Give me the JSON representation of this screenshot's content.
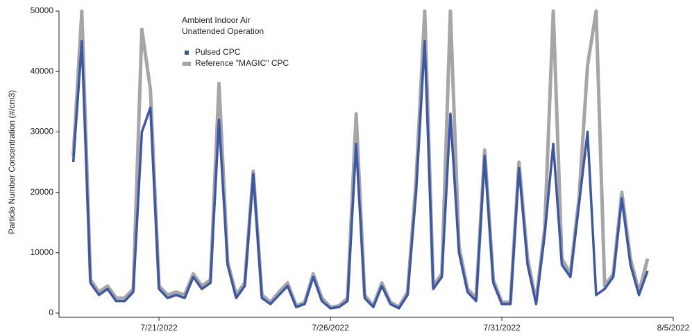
{
  "chart_data": {
    "type": "line",
    "annotation": [
      "Ambient Indoor Air",
      "Unattended Operation"
    ],
    "y_label": "Particle Number Concentration (#/cm3)",
    "x": [
      "2022-07-18T12:00",
      "2022-07-18T18:00",
      "2022-07-19T00:00",
      "2022-07-19T06:00",
      "2022-07-19T12:00",
      "2022-07-19T18:00",
      "2022-07-20T00:00",
      "2022-07-20T06:00",
      "2022-07-20T12:00",
      "2022-07-20T18:00",
      "2022-07-21T00:00",
      "2022-07-21T06:00",
      "2022-07-21T12:00",
      "2022-07-21T18:00",
      "2022-07-22T00:00",
      "2022-07-22T06:00",
      "2022-07-22T12:00",
      "2022-07-22T18:00",
      "2022-07-23T00:00",
      "2022-07-23T06:00",
      "2022-07-23T12:00",
      "2022-07-23T18:00",
      "2022-07-24T00:00",
      "2022-07-24T06:00",
      "2022-07-24T12:00",
      "2022-07-24T18:00",
      "2022-07-25T00:00",
      "2022-07-25T06:00",
      "2022-07-25T12:00",
      "2022-07-25T18:00",
      "2022-07-26T00:00",
      "2022-07-26T06:00",
      "2022-07-26T12:00",
      "2022-07-26T18:00",
      "2022-07-27T00:00",
      "2022-07-27T06:00",
      "2022-07-27T12:00",
      "2022-07-27T18:00",
      "2022-07-28T00:00",
      "2022-07-28T06:00",
      "2022-07-28T12:00",
      "2022-07-28T18:00",
      "2022-07-29T00:00",
      "2022-07-29T06:00",
      "2022-07-29T12:00",
      "2022-07-29T18:00",
      "2022-07-30T00:00",
      "2022-07-30T06:00",
      "2022-07-30T12:00",
      "2022-07-30T18:00",
      "2022-07-31T00:00",
      "2022-07-31T06:00",
      "2022-07-31T12:00",
      "2022-07-31T18:00",
      "2022-08-01T00:00",
      "2022-08-01T06:00",
      "2022-08-01T12:00",
      "2022-08-01T18:00",
      "2022-08-02T00:00",
      "2022-08-02T06:00",
      "2022-08-02T12:00",
      "2022-08-02T18:00",
      "2022-08-03T00:00",
      "2022-08-03T06:00",
      "2022-08-03T12:00",
      "2022-08-03T18:00",
      "2022-08-04T00:00",
      "2022-08-04T06:00"
    ],
    "series": [
      {
        "name": "Reference \"MAGIC\" CPC",
        "color": "#a6a6a6",
        "values": [
          26000,
          50000,
          5500,
          3500,
          4500,
          2500,
          2500,
          4000,
          47000,
          37000,
          4500,
          3000,
          3500,
          3000,
          6500,
          4500,
          5500,
          38000,
          8500,
          3000,
          5000,
          23500,
          3000,
          1800,
          3500,
          5000,
          1200,
          1800,
          6500,
          2500,
          1000,
          1200,
          2500,
          33000,
          3000,
          1200,
          5000,
          1800,
          1000,
          3500,
          22000,
          50000,
          4500,
          6500,
          50000,
          11000,
          4000,
          2500,
          27000,
          5500,
          1800,
          1800,
          25000,
          9000,
          2000,
          14000,
          50000,
          9000,
          6500,
          19000,
          41000,
          50000,
          4500,
          6500,
          20000,
          9000,
          3500,
          9000
        ]
      },
      {
        "name": "Pulsed CPC",
        "color": "#3c57a6",
        "values": [
          25000,
          45000,
          5000,
          3000,
          4000,
          2000,
          2000,
          3500,
          30000,
          34000,
          4000,
          2500,
          3000,
          2500,
          6000,
          4000,
          5000,
          32000,
          8000,
          2500,
          4500,
          23000,
          2500,
          1500,
          3000,
          4500,
          1000,
          1500,
          6000,
          2000,
          800,
          1000,
          2000,
          28000,
          2500,
          1000,
          4500,
          1500,
          800,
          3000,
          20000,
          45000,
          4000,
          6000,
          33000,
          10000,
          3500,
          2000,
          26000,
          5000,
          1500,
          1500,
          24000,
          8000,
          1500,
          13000,
          28000,
          8000,
          6000,
          18000,
          30000,
          3000,
          4000,
          6000,
          19000,
          8000,
          3000,
          7000
        ]
      }
    ],
    "xlim": [
      "2022-07-18T02:00",
      "2022-08-05T00:00"
    ],
    "xticks": [
      {
        "value": "2022-07-21T00:00",
        "label": "7/21/2022"
      },
      {
        "value": "2022-07-26T00:00",
        "label": "7/26/2022"
      },
      {
        "value": "2022-07-31T00:00",
        "label": "7/31/2022"
      },
      {
        "value": "2022-08-05T00:00",
        "label": "8/5/2022"
      }
    ],
    "ylim": [
      0,
      50000
    ],
    "yticks": [
      0,
      10000,
      20000,
      30000,
      40000,
      50000
    ],
    "legend": "top"
  }
}
